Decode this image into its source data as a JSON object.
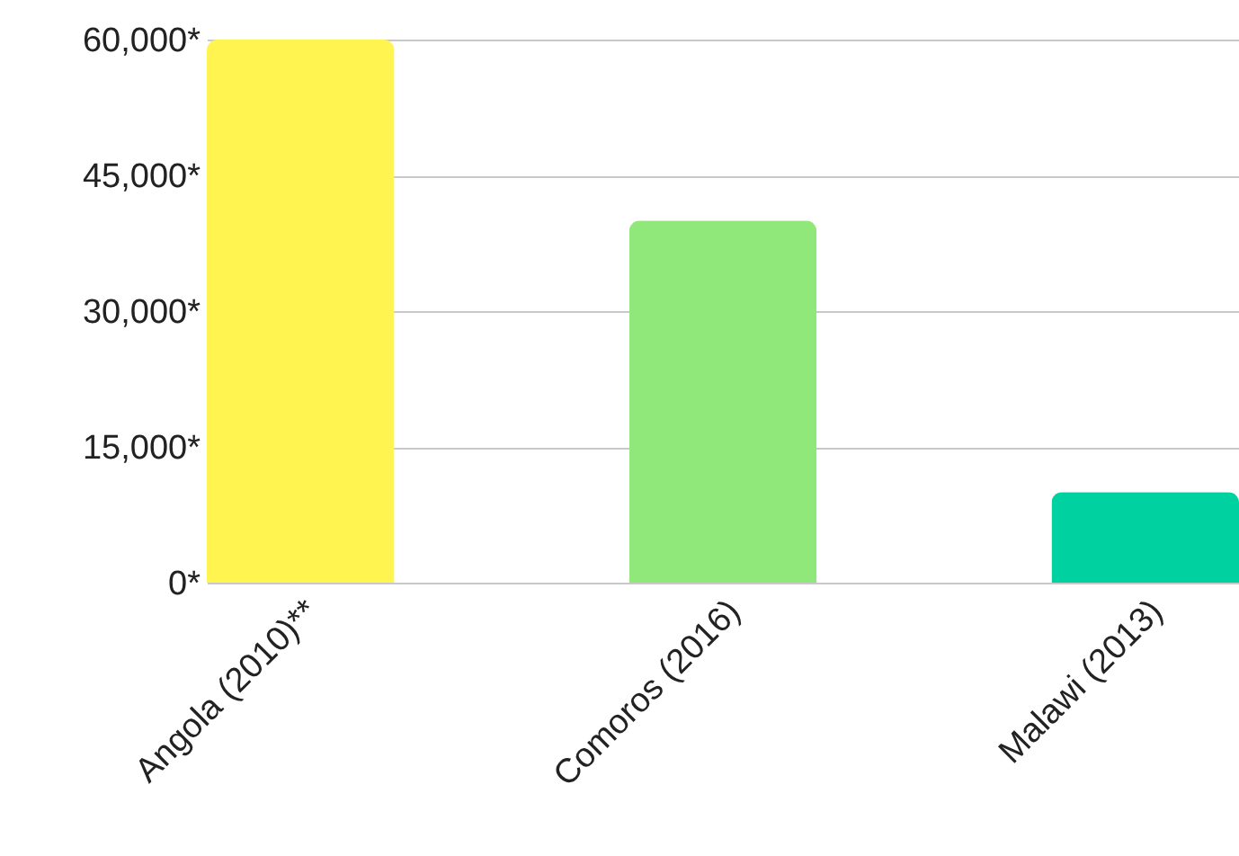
{
  "chart_data": {
    "type": "bar",
    "categories": [
      "Angola (2010)**",
      "Comoros (2016)",
      "Malawi (2013)"
    ],
    "values": [
      60000,
      40000,
      10000
    ],
    "colors": [
      "#fff450",
      "#90e87a",
      "#00d1a0"
    ],
    "ylim": [
      0,
      60000
    ],
    "yticks": [
      {
        "value": 0,
        "label": "0*"
      },
      {
        "value": 15000,
        "label": "15,000*"
      },
      {
        "value": 30000,
        "label": "30,000*"
      },
      {
        "value": 45000,
        "label": "45,000*"
      },
      {
        "value": 60000,
        "label": "60,000*"
      }
    ],
    "grid": true,
    "legend": false
  }
}
